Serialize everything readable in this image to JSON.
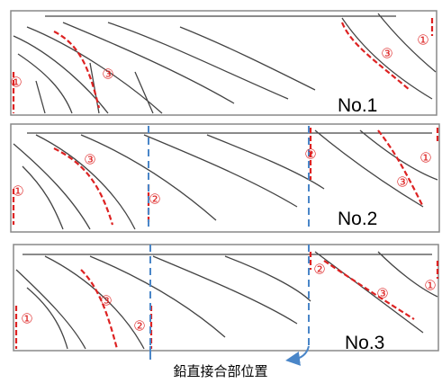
{
  "panels": [
    {
      "label": "No.1",
      "markers": [
        "①",
        "③",
        "③",
        "①"
      ]
    },
    {
      "label": "No.2",
      "markers": [
        "①",
        "③",
        "②",
        "②",
        "①",
        "③"
      ]
    },
    {
      "label": "No.3",
      "markers": [
        "①",
        "③",
        "②",
        "②",
        "③",
        "①"
      ]
    }
  ],
  "caption": "鉛直接合部位置"
}
